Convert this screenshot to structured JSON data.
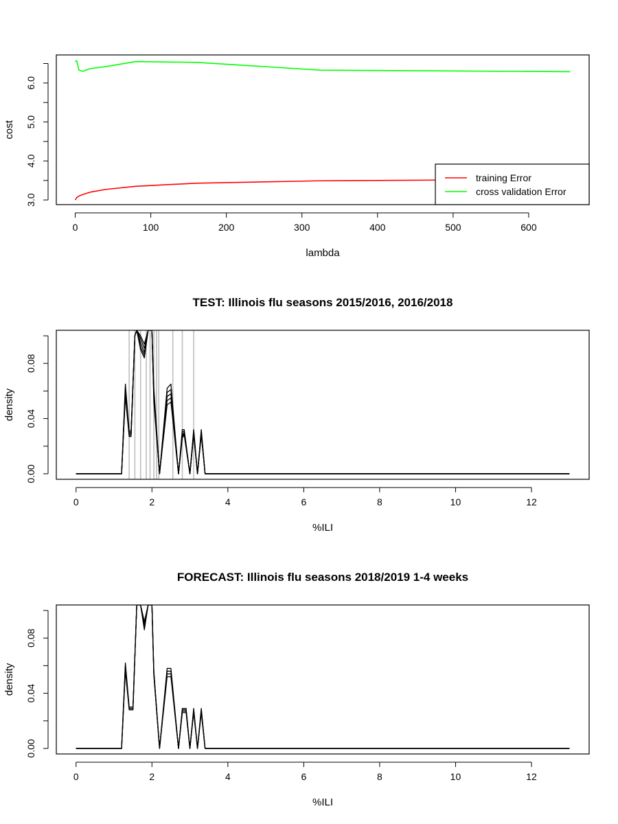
{
  "chart_data": [
    {
      "type": "line",
      "title": "",
      "xlabel": "lambda",
      "ylabel": "cost",
      "xlim": [
        -25,
        680
      ],
      "ylim": [
        2.88,
        6.72
      ],
      "xticks": [
        0,
        100,
        200,
        300,
        400,
        500,
        600
      ],
      "yticks": [
        3.0,
        3.5,
        4.0,
        4.5,
        5.0,
        5.5,
        6.0,
        6.5
      ],
      "ytick_labels": [
        "3.0",
        "",
        "4.0",
        "",
        "5.0",
        "",
        "6.0",
        ""
      ],
      "legend": "bottom-right",
      "grid": false,
      "series": [
        {
          "name": "training Error",
          "color": "#ff0000",
          "x": [
            0,
            1,
            2,
            5,
            10,
            20,
            40,
            80,
            160,
            320,
            480,
            500
          ],
          "y": [
            3.0,
            3.03,
            3.06,
            3.1,
            3.14,
            3.2,
            3.27,
            3.35,
            3.43,
            3.49,
            3.51,
            3.51
          ]
        },
        {
          "name": "cross validation Error",
          "color": "#00ff00",
          "x": [
            0,
            2,
            5,
            10,
            20,
            40,
            80,
            160,
            325,
            655
          ],
          "y": [
            6.55,
            6.57,
            6.33,
            6.3,
            6.37,
            6.42,
            6.55,
            6.53,
            6.33,
            6.29
          ]
        }
      ]
    },
    {
      "type": "line",
      "title": "TEST: Illinois  flu seasons 2015/2016, 2016/2018",
      "xlabel": "%ILI",
      "ylabel": "density",
      "xlim": [
        -0.52,
        13.52
      ],
      "ylim": [
        -0.004,
        0.104
      ],
      "xticks": [
        0,
        2,
        4,
        6,
        8,
        10,
        12
      ],
      "yticks": [
        0,
        0.02,
        0.04,
        0.06,
        0.08,
        0.1
      ],
      "ytick_labels": [
        "0.00",
        "",
        "0.04",
        "",
        "0.08",
        ""
      ],
      "grid": false,
      "vlines": {
        "color": "#bebebe",
        "x": [
          1.4,
          1.55,
          1.7,
          1.85,
          1.95,
          2.05,
          2.12,
          2.18,
          2.55,
          2.8,
          3.1
        ]
      },
      "series_style": {
        "color": "#000000",
        "count": 5
      },
      "series": [
        {
          "x": [
            0,
            1.2,
            1.3,
            1.4,
            1.45,
            1.55,
            1.6,
            1.7,
            1.8,
            1.9,
            2.0,
            2.05,
            2.2,
            2.4,
            2.5,
            2.7,
            2.8,
            2.85,
            3.0,
            3.1,
            3.2,
            3.3,
            3.4,
            13
          ],
          "y": [
            0,
            0,
            0.065,
            0.031,
            0.031,
            0.1,
            0.104,
            0.1,
            0.094,
            0.104,
            0.104,
            0.062,
            0.0,
            0.062,
            0.065,
            0.0,
            0.032,
            0.032,
            0.0,
            0.032,
            0.0,
            0.032,
            0.0,
            0
          ]
        },
        {
          "x": [
            0,
            1.2,
            1.3,
            1.4,
            1.45,
            1.55,
            1.6,
            1.7,
            1.8,
            1.9,
            2.0,
            2.05,
            2.2,
            2.4,
            2.5,
            2.7,
            2.8,
            2.85,
            3.0,
            3.1,
            3.2,
            3.3,
            3.4,
            13
          ],
          "y": [
            0,
            0,
            0.062,
            0.03,
            0.03,
            0.1,
            0.104,
            0.098,
            0.091,
            0.104,
            0.104,
            0.059,
            0.0,
            0.059,
            0.061,
            0.0,
            0.03,
            0.031,
            0.0,
            0.031,
            0.0,
            0.031,
            0.0,
            0
          ]
        },
        {
          "x": [
            0,
            1.2,
            1.3,
            1.4,
            1.45,
            1.55,
            1.6,
            1.7,
            1.8,
            1.9,
            2.0,
            2.05,
            2.2,
            2.4,
            2.5,
            2.7,
            2.8,
            2.85,
            3.0,
            3.1,
            3.2,
            3.3,
            3.4,
            13
          ],
          "y": [
            0,
            0,
            0.06,
            0.029,
            0.029,
            0.1,
            0.104,
            0.095,
            0.088,
            0.104,
            0.104,
            0.057,
            0.0,
            0.056,
            0.058,
            0.0,
            0.028,
            0.03,
            0.0,
            0.03,
            0.0,
            0.03,
            0.0,
            0
          ]
        },
        {
          "x": [
            0,
            1.2,
            1.3,
            1.4,
            1.45,
            1.55,
            1.6,
            1.7,
            1.8,
            1.9,
            2.0,
            2.05,
            2.2,
            2.4,
            2.5,
            2.7,
            2.8,
            2.85,
            3.0,
            3.1,
            3.2,
            3.3,
            3.4,
            13
          ],
          "y": [
            0,
            0,
            0.058,
            0.028,
            0.028,
            0.1,
            0.104,
            0.092,
            0.086,
            0.104,
            0.104,
            0.055,
            0.0,
            0.053,
            0.055,
            0.0,
            0.027,
            0.029,
            0.0,
            0.029,
            0.0,
            0.029,
            0.0,
            0
          ]
        },
        {
          "x": [
            0,
            1.2,
            1.3,
            1.4,
            1.45,
            1.55,
            1.6,
            1.7,
            1.8,
            1.9,
            2.0,
            2.05,
            2.2,
            2.4,
            2.5,
            2.7,
            2.8,
            2.85,
            3.0,
            3.1,
            3.2,
            3.3,
            3.4,
            13
          ],
          "y": [
            0,
            0,
            0.056,
            0.027,
            0.027,
            0.1,
            0.104,
            0.09,
            0.084,
            0.104,
            0.104,
            0.052,
            0.0,
            0.05,
            0.052,
            0.0,
            0.026,
            0.028,
            0.0,
            0.028,
            0.0,
            0.028,
            0.0,
            0
          ]
        }
      ]
    },
    {
      "type": "line",
      "title": "FORECAST: Illinois flu seasons 2018/2019 1-4 weeks",
      "xlabel": "%ILI",
      "ylabel": "density",
      "xlim": [
        -0.52,
        13.52
      ],
      "ylim": [
        -0.004,
        0.104
      ],
      "xticks": [
        0,
        2,
        4,
        6,
        8,
        10,
        12
      ],
      "yticks": [
        0,
        0.02,
        0.04,
        0.06,
        0.08,
        0.1
      ],
      "ytick_labels": [
        "0.00",
        "",
        "0.04",
        "",
        "0.08",
        ""
      ],
      "grid": false,
      "series_style": {
        "color": "#000000",
        "count": 4
      },
      "series": [
        {
          "x": [
            0,
            1.2,
            1.3,
            1.4,
            1.5,
            1.6,
            1.7,
            1.8,
            1.9,
            2.0,
            2.05,
            2.2,
            2.4,
            2.5,
            2.7,
            2.8,
            2.9,
            3.0,
            3.1,
            3.2,
            3.3,
            3.4,
            13
          ],
          "y": [
            0,
            0,
            0.062,
            0.03,
            0.03,
            0.104,
            0.104,
            0.086,
            0.104,
            0.104,
            0.056,
            0.0,
            0.058,
            0.058,
            0.0,
            0.029,
            0.029,
            0.0,
            0.029,
            0.0,
            0.029,
            0.0,
            0
          ]
        },
        {
          "x": [
            0,
            1.2,
            1.3,
            1.4,
            1.5,
            1.6,
            1.7,
            1.8,
            1.9,
            2.0,
            2.05,
            2.2,
            2.4,
            2.5,
            2.7,
            2.8,
            2.9,
            3.0,
            3.1,
            3.2,
            3.3,
            3.4,
            13
          ],
          "y": [
            0,
            0,
            0.06,
            0.029,
            0.029,
            0.104,
            0.104,
            0.088,
            0.104,
            0.104,
            0.055,
            0.0,
            0.056,
            0.056,
            0.0,
            0.028,
            0.028,
            0.0,
            0.028,
            0.0,
            0.028,
            0.0,
            0
          ]
        },
        {
          "x": [
            0,
            1.2,
            1.3,
            1.4,
            1.5,
            1.6,
            1.7,
            1.8,
            1.9,
            2.0,
            2.05,
            2.2,
            2.4,
            2.5,
            2.7,
            2.8,
            2.9,
            3.0,
            3.1,
            3.2,
            3.3,
            3.4,
            13
          ],
          "y": [
            0,
            0,
            0.058,
            0.029,
            0.029,
            0.104,
            0.104,
            0.09,
            0.104,
            0.104,
            0.054,
            0.0,
            0.054,
            0.054,
            0.0,
            0.027,
            0.027,
            0.0,
            0.027,
            0.0,
            0.027,
            0.0,
            0
          ]
        },
        {
          "x": [
            0,
            1.2,
            1.3,
            1.4,
            1.5,
            1.6,
            1.7,
            1.8,
            1.9,
            2.0,
            2.05,
            2.2,
            2.4,
            2.5,
            2.7,
            2.8,
            2.9,
            3.0,
            3.1,
            3.2,
            3.3,
            3.4,
            13
          ],
          "y": [
            0,
            0,
            0.056,
            0.028,
            0.028,
            0.104,
            0.104,
            0.092,
            0.104,
            0.104,
            0.053,
            0.0,
            0.052,
            0.052,
            0.0,
            0.026,
            0.026,
            0.0,
            0.026,
            0.0,
            0.026,
            0.0,
            0
          ]
        }
      ]
    }
  ]
}
